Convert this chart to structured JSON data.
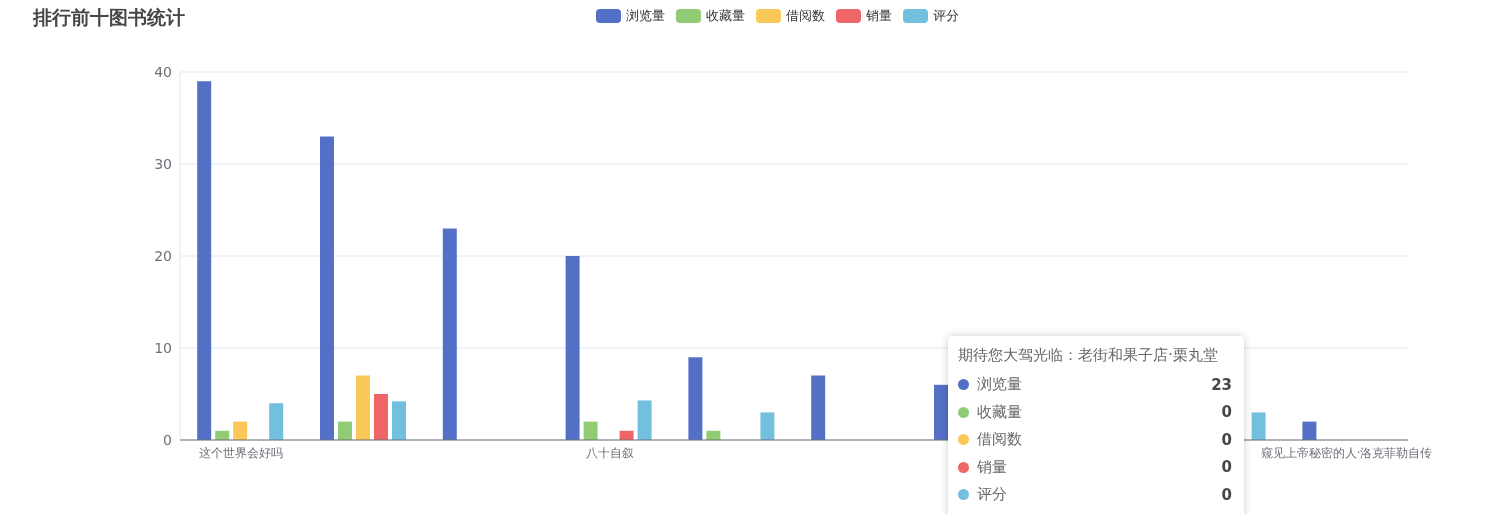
{
  "chart_data": {
    "type": "bar",
    "title": "排行前十图书统计",
    "categories": [
      "这个世界会好吗",
      null,
      null,
      "八十自叙",
      null,
      null,
      null,
      null,
      null,
      "窥见上帝秘密的人·洛克菲勒自传"
    ],
    "series": [
      {
        "name": "浏览量",
        "color": "#5470c6",
        "values": [
          39,
          33,
          23,
          20,
          9,
          7,
          6,
          null,
          null,
          2
        ]
      },
      {
        "name": "收藏量",
        "color": "#91cc75",
        "values": [
          1,
          2,
          0,
          2,
          1,
          0,
          null,
          null,
          null,
          0
        ]
      },
      {
        "name": "借阅数",
        "color": "#fac858",
        "values": [
          2,
          7,
          0,
          0,
          0,
          0,
          null,
          null,
          null,
          0
        ]
      },
      {
        "name": "销量",
        "color": "#ee6666",
        "values": [
          0,
          5,
          0,
          1,
          0,
          0,
          null,
          null,
          null,
          0
        ]
      },
      {
        "name": "评分",
        "color": "#73c0de",
        "values": [
          4,
          4.2,
          0,
          4.3,
          3,
          0,
          null,
          null,
          3,
          0
        ]
      }
    ],
    "ylim": [
      0,
      40
    ],
    "yticks": [
      0,
      10,
      20,
      30,
      40
    ],
    "grid": "y",
    "legend": "top",
    "annotations": [
      "期待您大驾光临：老街和果子店·栗丸堂",
      "23",
      "0",
      "0",
      "0",
      "0"
    ]
  }
}
